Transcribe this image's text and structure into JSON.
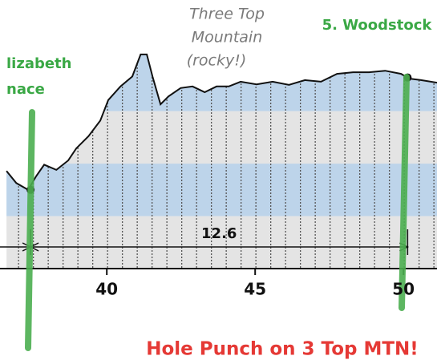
{
  "chart_data": {
    "type": "area",
    "x": [
      36.62,
      36.95,
      37.35,
      37.62,
      37.89,
      38.3,
      38.7,
      38.97,
      39.38,
      39.78,
      40.05,
      40.46,
      40.86,
      41.14,
      41.35,
      41.54,
      41.81,
      42.08,
      42.49,
      42.89,
      43.3,
      43.7,
      44.11,
      44.51,
      45.05,
      45.59,
      46.14,
      46.68,
      47.22,
      47.76,
      48.3,
      48.84,
      49.38,
      49.92,
      50.19,
      50.59,
      51.14
    ],
    "values": [
      1.86,
      1.63,
      1.5,
      1.76,
      1.98,
      1.88,
      2.06,
      2.29,
      2.52,
      2.82,
      3.21,
      3.47,
      3.66,
      4.08,
      4.08,
      3.66,
      3.13,
      3.28,
      3.44,
      3.47,
      3.36,
      3.47,
      3.47,
      3.56,
      3.51,
      3.56,
      3.5,
      3.59,
      3.56,
      3.71,
      3.74,
      3.74,
      3.77,
      3.71,
      3.62,
      3.59,
      3.54
    ],
    "color": "#111111",
    "band_colors": [
      "#e4e4e4",
      "#bdd4ea"
    ],
    "xlim": [
      36.4,
      51.13
    ],
    "ylim": [
      0,
      4.2
    ],
    "xticks": [
      40,
      45,
      50
    ],
    "yticks": [
      0,
      1,
      2,
      3,
      4.2
    ],
    "annotation": [
      "Three Top",
      "Mountain",
      "(rocky!)"
    ],
    "markers": [
      {
        "name": [
          "lizabeth",
          "nace"
        ],
        "x": 37.43,
        "y": 1.5
      },
      {
        "name": [
          "5. Woodstock"
        ],
        "x": 50.14,
        "y": 3.64
      }
    ],
    "distance": 12.6,
    "note": "Hole Punch on 3 Top MTN!"
  }
}
